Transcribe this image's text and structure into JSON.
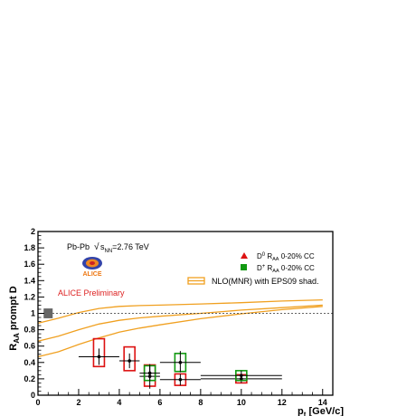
{
  "chart_data": {
    "type": "scatter",
    "xlabel_main": "p",
    "xlabel_sub": "t",
    "xlabel_unit": " [GeV/c]",
    "ylabel_main": "R",
    "ylabel_sub": "AA",
    "ylabel_rest": " prompt D",
    "xlim": [
      0,
      14.5
    ],
    "ylim": [
      0,
      2
    ],
    "xticks": [
      "0",
      "2",
      "4",
      "6",
      "8",
      "10",
      "12",
      "14"
    ],
    "yticks": [
      "0",
      "0.2",
      "0.4",
      "0.6",
      "0.8",
      "1",
      "1.2",
      "1.4",
      "1.6",
      "1.8",
      "2"
    ],
    "system_label": "Pb-Pb",
    "energy_label": "=2.76 TeV",
    "sqrt_label": "s",
    "sqrt_sub": "NN",
    "logo_text": "ALICE",
    "preliminary_label": "ALICE Preliminary",
    "reference_line": 1,
    "normalization_box": {
      "x": 0.5,
      "y": 1.0,
      "half_height": 0.06
    },
    "series": [
      {
        "name": "D⁰ R_AA 0-20% CC",
        "legend_main": "D",
        "legend_sup": "0",
        "legend_r": " R",
        "legend_sub": "AA",
        "legend_rest": " 0-20% CC",
        "color": "#dd1111",
        "marker": "triangle",
        "points": [
          {
            "x": 3.0,
            "y": 0.47,
            "xlo": 2.0,
            "xhi": 4.0,
            "elo": 0.1,
            "ehi": 0.1,
            "slo": 0.12,
            "shi": 0.22
          },
          {
            "x": 4.5,
            "y": 0.42,
            "xlo": 4.0,
            "xhi": 5.0,
            "elo": 0.09,
            "ehi": 0.09,
            "slo": 0.12,
            "shi": 0.17
          },
          {
            "x": 5.5,
            "y": 0.23,
            "xlo": 5.0,
            "xhi": 6.0,
            "elo": 0.15,
            "ehi": 0.15,
            "slo": 0.12,
            "shi": 0.14
          },
          {
            "x": 7.0,
            "y": 0.19,
            "xlo": 6.0,
            "xhi": 8.0,
            "elo": 0.07,
            "ehi": 0.07,
            "slo": 0.07,
            "shi": 0.07
          },
          {
            "x": 10.0,
            "y": 0.2,
            "xlo": 8.0,
            "xhi": 12.0,
            "elo": 0.05,
            "ehi": 0.05,
            "slo": 0.05,
            "shi": 0.05
          }
        ]
      },
      {
        "name": "D⁺ R_AA 0-20% CC",
        "legend_main": "D",
        "legend_sup": "+",
        "legend_r": " R",
        "legend_sub": "AA",
        "legend_rest": " 0-20% CC",
        "color": "#119911",
        "marker": "square",
        "points": [
          {
            "x": 5.5,
            "y": 0.27,
            "xlo": 5.0,
            "xhi": 6.0,
            "elo": 0.1,
            "ehi": 0.1,
            "slo": 0.09,
            "shi": 0.09
          },
          {
            "x": 7.0,
            "y": 0.4,
            "xlo": 6.0,
            "xhi": 8.0,
            "elo": 0.12,
            "ehi": 0.14,
            "slo": 0.11,
            "shi": 0.11
          },
          {
            "x": 10.0,
            "y": 0.24,
            "xlo": 8.0,
            "xhi": 12.0,
            "elo": 0.06,
            "ehi": 0.06,
            "slo": 0.06,
            "shi": 0.06
          }
        ]
      }
    ],
    "band": {
      "name": "NLO(MNR) with EPS09 shad.",
      "color": "#f0a020",
      "lines": [
        {
          "points": [
            [
              0,
              0.88
            ],
            [
              1,
              0.94
            ],
            [
              2,
              1.01
            ],
            [
              3,
              1.06
            ],
            [
              4,
              1.085
            ],
            [
              5,
              1.095
            ],
            [
              6,
              1.1
            ],
            [
              8,
              1.115
            ],
            [
              10,
              1.13
            ],
            [
              12,
              1.15
            ],
            [
              14,
              1.165
            ]
          ]
        },
        {
          "points": [
            [
              0,
              0.66
            ],
            [
              1,
              0.72
            ],
            [
              2,
              0.8
            ],
            [
              3,
              0.87
            ],
            [
              4,
              0.915
            ],
            [
              5,
              0.945
            ],
            [
              6,
              0.965
            ],
            [
              8,
              1.0
            ],
            [
              10,
              1.04
            ],
            [
              12,
              1.07
            ],
            [
              14,
              1.1
            ]
          ]
        },
        {
          "points": [
            [
              0,
              0.47
            ],
            [
              1,
              0.53
            ],
            [
              2,
              0.62
            ],
            [
              3,
              0.7
            ],
            [
              4,
              0.77
            ],
            [
              5,
              0.82
            ],
            [
              6,
              0.86
            ],
            [
              8,
              0.935
            ],
            [
              10,
              0.995
            ],
            [
              12,
              1.045
            ],
            [
              14,
              1.085
            ]
          ]
        }
      ]
    }
  }
}
